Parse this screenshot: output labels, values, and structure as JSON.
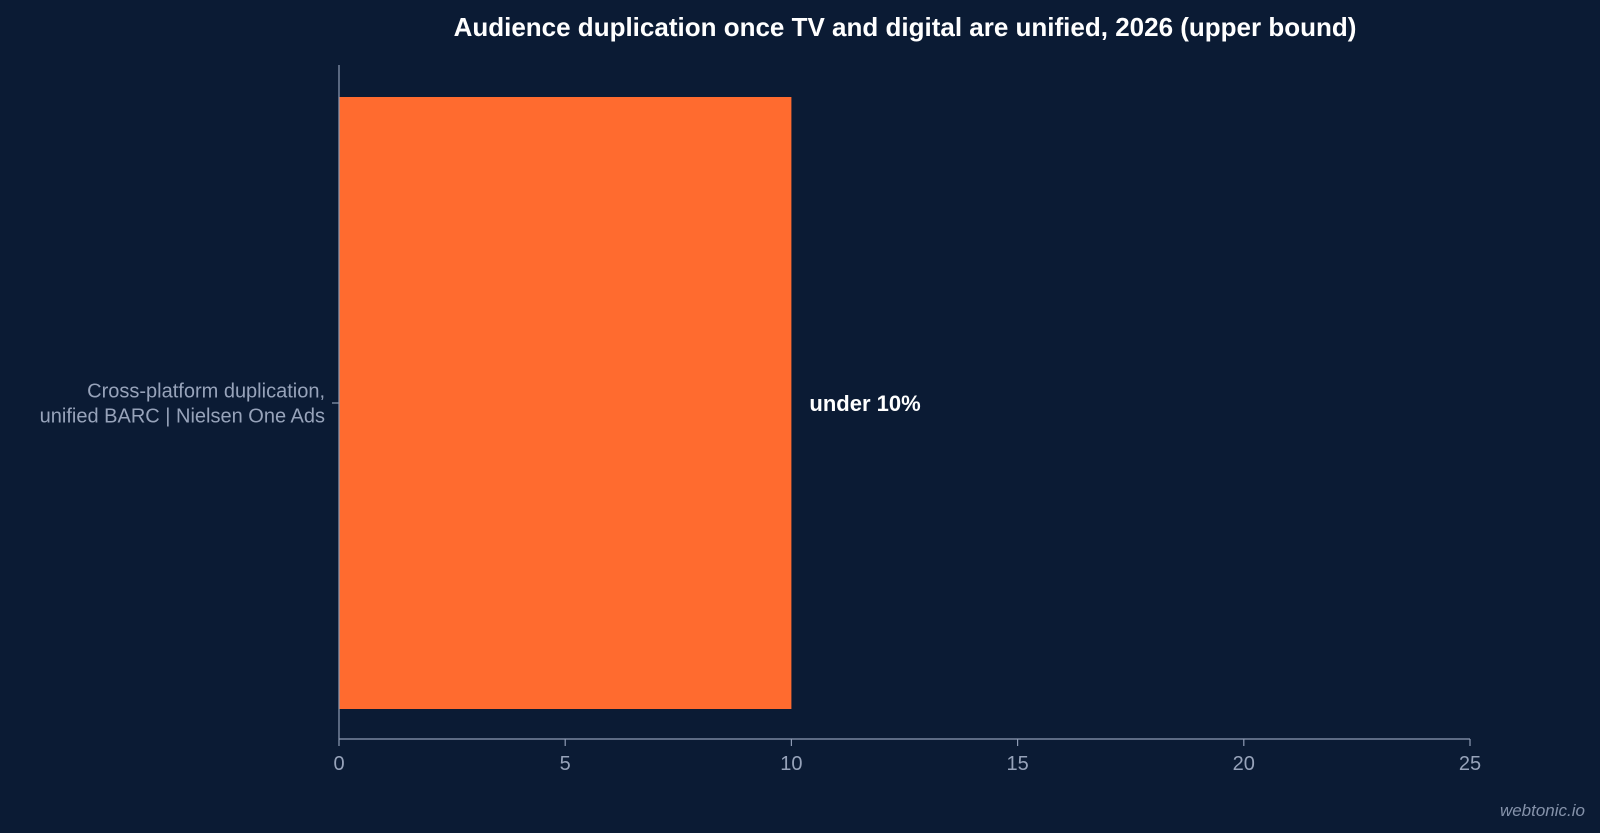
{
  "chart_data": {
    "type": "bar",
    "orientation": "horizontal",
    "title": "Audience duplication once TV and digital are unified, 2026 (upper bound)",
    "categories": [
      "Cross-platform duplication,\nunified BARC | Nielsen One Ads"
    ],
    "values": [
      10
    ],
    "data_labels": [
      "under 10%"
    ],
    "xlabel": "",
    "ylabel": "",
    "xlim": [
      0,
      25
    ],
    "x_ticks": [
      0,
      5,
      10,
      15,
      20,
      25
    ],
    "grid": false,
    "legend": "none",
    "colors": {
      "background": "#0b1b34",
      "bar": "#ff6b2f",
      "axis": "#8e9bb4",
      "tick_text": "#97a3ba",
      "title_text": "#ffffff",
      "data_label_text": "#ffffff"
    }
  },
  "watermark": "webtonic.io"
}
